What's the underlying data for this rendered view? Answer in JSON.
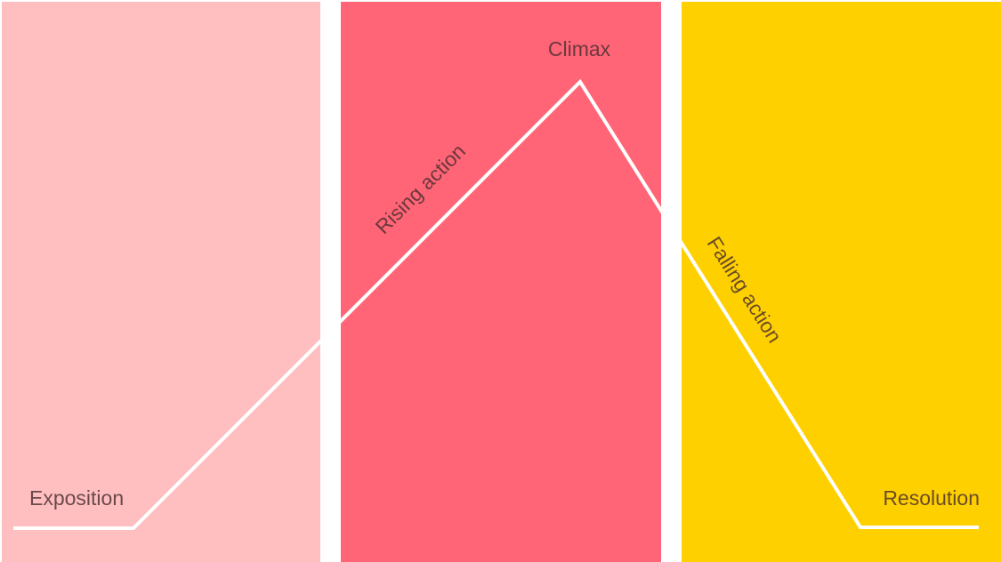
{
  "colors": {
    "exposition_panel": "#ffbfc0",
    "rising_panel": "#ff6577",
    "falling_panel": "#ffd000",
    "line": "#ffffff",
    "label": "#4a2e30"
  },
  "labels": {
    "exposition": "Exposition",
    "rising_action": "Rising action",
    "climax": "Climax",
    "falling_action": "Falling action",
    "resolution": "Resolution"
  }
}
